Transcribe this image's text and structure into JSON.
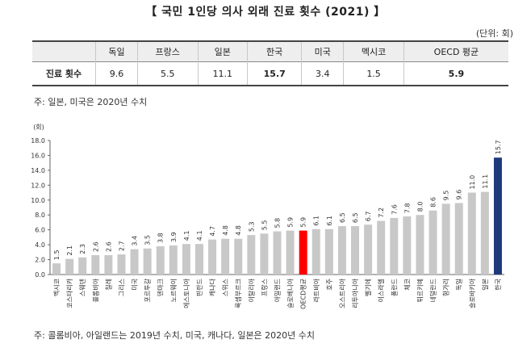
{
  "title": "【 국민 1인당 의사 외래 진료 횟수 (2021) 】",
  "unit": "(단위: 회)",
  "table": {
    "headers": [
      "독일",
      "프랑스",
      "일본",
      "한국",
      "미국",
      "멕시코",
      "OECD 평균"
    ],
    "row_label": "진료 횟수",
    "values": [
      "9.6",
      "5.5",
      "11.1",
      "15.7",
      "3.4",
      "1.5",
      "5.9"
    ]
  },
  "note_top": "주: 일본, 미국은 2020년 수치",
  "note_bottom": "주: 콜롬비아, 아일랜드는 2019년 수치, 미국, 캐나다, 일본은 2020년 수치",
  "colors": {
    "default_bar": "#c8c8c8",
    "oecd_bar": "#ff0000",
    "korea_bar": "#1f3a7a"
  },
  "chart_data": {
    "type": "bar",
    "ylabel": "(회)",
    "ylim": [
      0,
      18
    ],
    "yticks": [
      "0.0",
      "2.0",
      "4.0",
      "6.0",
      "8.0",
      "10.0",
      "12.0",
      "14.0",
      "16.0",
      "18.0"
    ],
    "grid": false,
    "categories": [
      "멕시코",
      "코스타리카",
      "스웨덴",
      "콜롬비아",
      "칠레",
      "그리스",
      "미국",
      "포르투갈",
      "덴마크",
      "노르웨이",
      "에스토니아",
      "핀란드",
      "캐나다",
      "스위스",
      "룩셈부르크",
      "이탈리아",
      "프랑스",
      "아일랜드",
      "슬로베니아",
      "OECD평균",
      "라트비아",
      "호주",
      "오스트리아",
      "리투아니아",
      "벨기에",
      "이스라엘",
      "폴란드",
      "체코",
      "튀르키예",
      "네덜란드",
      "헝가리",
      "독일",
      "슬로바키아",
      "일본",
      "한국"
    ],
    "values": [
      1.5,
      2.1,
      2.3,
      2.6,
      2.6,
      2.7,
      3.4,
      3.5,
      3.8,
      3.9,
      4.1,
      4.1,
      4.7,
      4.8,
      4.8,
      5.3,
      5.5,
      5.8,
      5.9,
      5.9,
      6.1,
      6.1,
      6.5,
      6.5,
      6.7,
      7.2,
      7.6,
      7.8,
      8.0,
      8.6,
      9.5,
      9.6,
      11.0,
      11.1,
      15.7
    ],
    "value_labels": [
      "1.5",
      "2.1",
      "2.3",
      "2.6",
      "2.6",
      "2.7",
      "3.4",
      "3.5",
      "3.8",
      "3.9",
      "4.1",
      "4.1",
      "4.7",
      "4.8",
      "4.8",
      "5.3",
      "5.5",
      "5.8",
      "5.9",
      "5.9",
      "6.1",
      "6.1",
      "6.5",
      "6.5",
      "6.7",
      "7.2",
      "7.6",
      "7.8",
      "8.0",
      "8.6",
      "9.5",
      "9.6",
      "11.0",
      "11.1",
      "15.7"
    ]
  }
}
